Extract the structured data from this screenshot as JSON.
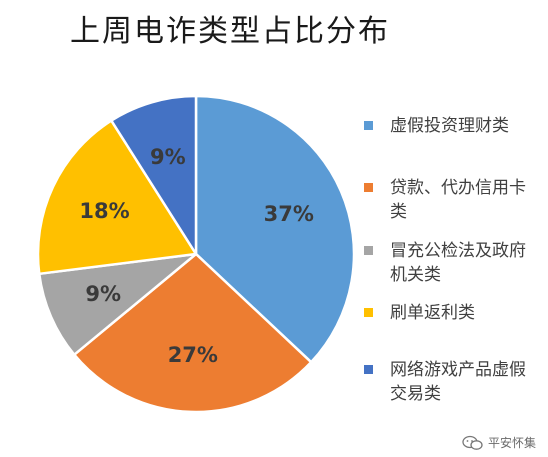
{
  "chart_data": {
    "type": "pie",
    "title": "上周电诈类型占比分布",
    "categories": [
      "虚假投资理财类",
      "贷款、代办信用卡类",
      "冒充公检法及政府机关类",
      "刷单返利类",
      "网络游戏产品虚假交易类"
    ],
    "values": [
      37,
      27,
      9,
      18,
      9
    ],
    "data_labels": [
      "37%",
      "27%",
      "9%",
      "18%",
      "9%"
    ],
    "colors": [
      "#5b9bd5",
      "#ed7d31",
      "#a5a5a5",
      "#ffc000",
      "#4472c4"
    ],
    "legend_position": "right",
    "start_angle_deg": 0,
    "direction": "clockwise"
  },
  "legend": [
    {
      "text": "虚假投资理财类",
      "color": "#5b9bd5"
    },
    {
      "text": "贷款、代办信用卡类",
      "color": "#ed7d31"
    },
    {
      "text": "冒充公检法及政府机关类",
      "color": "#a5a5a5"
    },
    {
      "text": "刷单返利类",
      "color": "#ffc000"
    },
    {
      "text": "网络游戏产品虚假交易类",
      "color": "#4472c4"
    }
  ],
  "watermark": {
    "text": "平安怀集",
    "icon": "wechat-icon"
  }
}
